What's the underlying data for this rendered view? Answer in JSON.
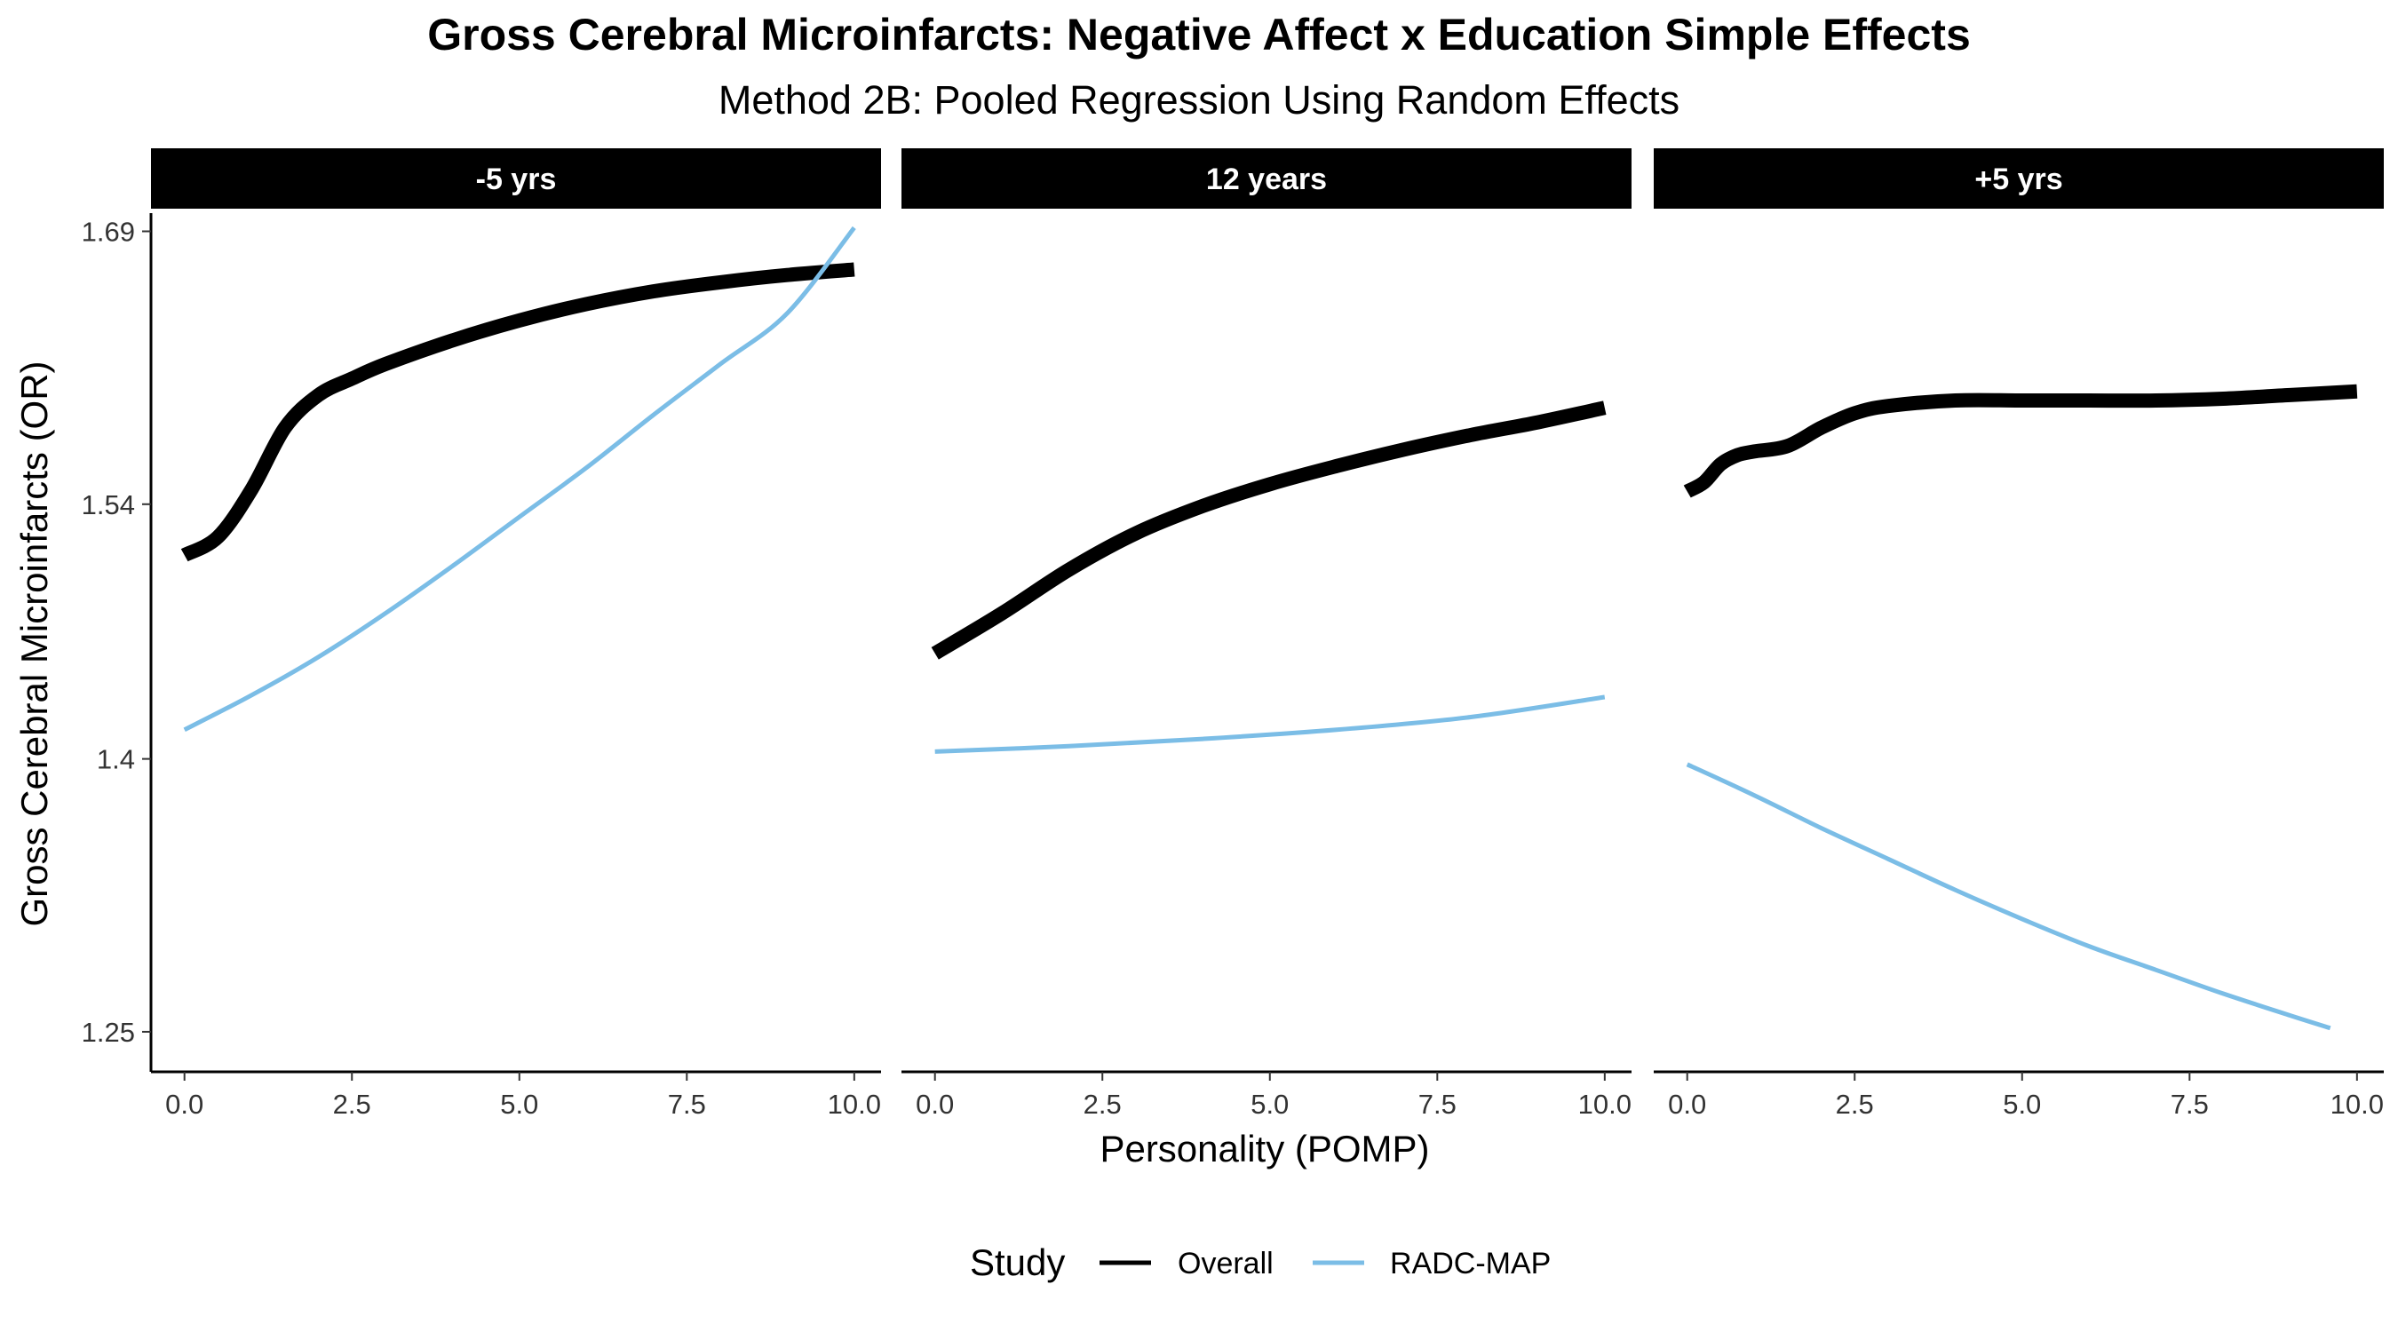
{
  "title": "Gross Cerebral Microinfarcts: Negative Affect x Education Simple Effects",
  "subtitle": "Method 2B: Pooled Regression Using Random Effects",
  "legend": {
    "title": "Study",
    "items": [
      {
        "label": "Overall",
        "color": "#000000"
      },
      {
        "label": "RADC-MAP",
        "color": "#7bbde6"
      }
    ]
  },
  "chart_data": {
    "type": "line",
    "xlabel": "Personality (POMP)",
    "ylabel": "Gross Cerebral Microinfarcts (OR)",
    "xlim": [
      -0.5,
      10.4
    ],
    "ylim": [
      1.228,
      1.7
    ],
    "x_ticks": [
      0,
      2.5,
      5,
      7.5,
      10
    ],
    "x_tick_labels": [
      "0.0",
      "2.5",
      "5.0",
      "7.5",
      "10.0"
    ],
    "y_ticks": [
      1.25,
      1.4,
      1.54,
      1.69
    ],
    "y_tick_labels": [
      "1.25",
      "1.4",
      "1.54",
      "1.69"
    ],
    "grid": false,
    "legend_position": "bottom",
    "facets": [
      {
        "label": "-5 yrs",
        "series": [
          {
            "name": "Overall",
            "color": "#000000",
            "x": [
              0,
              0.5,
              1,
              1.5,
              2,
              2.5,
              3,
              4,
              5,
              6,
              7,
              8,
              9,
              10
            ],
            "y": [
              1.512,
              1.522,
              1.548,
              1.582,
              1.6,
              1.609,
              1.617,
              1.63,
              1.641,
              1.65,
              1.657,
              1.662,
              1.666,
              1.669
            ]
          },
          {
            "name": "RADC-MAP",
            "color": "#7bbde6",
            "x": [
              0,
              1,
              2,
              3,
              4,
              5,
              6,
              7,
              8,
              9,
              10
            ],
            "y": [
              1.416,
              1.435,
              1.456,
              1.48,
              1.506,
              1.533,
              1.56,
              1.589,
              1.617,
              1.645,
              1.692
            ]
          }
        ]
      },
      {
        "label": "12 years",
        "series": [
          {
            "name": "Overall",
            "color": "#000000",
            "x": [
              0,
              1,
              2,
              3,
              4,
              5,
              6,
              7,
              8,
              9,
              10
            ],
            "y": [
              1.458,
              1.48,
              1.504,
              1.524,
              1.539,
              1.551,
              1.561,
              1.57,
              1.578,
              1.585,
              1.593
            ]
          },
          {
            "name": "RADC-MAP",
            "color": "#7bbde6",
            "x": [
              0,
              2,
              4,
              6,
              8,
              10
            ],
            "y": [
              1.404,
              1.407,
              1.411,
              1.416,
              1.423,
              1.434
            ]
          }
        ]
      },
      {
        "label": "+5 yrs",
        "series": [
          {
            "name": "Overall",
            "color": "#000000",
            "x": [
              0,
              0.25,
              0.5,
              0.75,
              1,
              1.5,
              2,
              2.5,
              3,
              4,
              5,
              6,
              7,
              8,
              9,
              10
            ],
            "y": [
              1.547,
              1.552,
              1.562,
              1.567,
              1.569,
              1.572,
              1.582,
              1.59,
              1.594,
              1.597,
              1.597,
              1.597,
              1.597,
              1.598,
              1.6,
              1.602
            ]
          },
          {
            "name": "RADC-MAP",
            "color": "#7bbde6",
            "x": [
              0,
              1,
              2,
              3,
              4,
              5,
              6,
              7,
              8,
              9,
              9.6
            ],
            "y": [
              1.397,
              1.38,
              1.362,
              1.345,
              1.328,
              1.312,
              1.297,
              1.284,
              1.271,
              1.259,
              1.252
            ]
          }
        ]
      }
    ]
  }
}
